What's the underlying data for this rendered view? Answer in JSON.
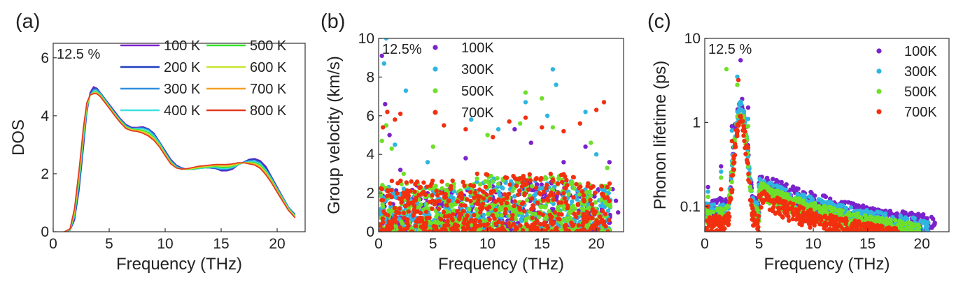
{
  "chart_data": [
    {
      "panel": "(a)",
      "type": "line",
      "xlabel": "Frequency (THz)",
      "ylabel": "DOS",
      "xlim": [
        0,
        22.5
      ],
      "ylim": [
        0,
        6.5
      ],
      "xticks": [
        "0",
        "5",
        "10",
        "15",
        "20"
      ],
      "yticks": [
        "0",
        "2",
        "4",
        "6"
      ],
      "annotation": "12.5 %",
      "series": [
        {
          "name": "100 K",
          "color": "#7a22cc",
          "x": [
            1.0,
            1.5,
            1.9,
            2.3,
            2.7,
            3.0,
            3.3,
            3.6,
            3.9,
            4.2,
            4.6,
            5.0,
            5.5,
            6.0,
            6.5,
            7.0,
            7.5,
            8.0,
            8.5,
            9.0,
            9.5,
            10.0,
            10.5,
            11.0,
            11.5,
            12.0,
            12.5,
            13.0,
            13.5,
            14.0,
            14.5,
            15.0,
            15.5,
            16.0,
            16.5,
            17.0,
            17.5,
            18.0,
            18.5,
            19.0,
            19.5,
            20.0,
            20.5,
            21.0,
            21.6
          ],
          "y": [
            0.0,
            0.05,
            0.4,
            1.5,
            3.0,
            4.2,
            4.8,
            5.0,
            4.95,
            4.8,
            4.6,
            4.4,
            4.15,
            3.9,
            3.7,
            3.6,
            3.6,
            3.62,
            3.55,
            3.4,
            3.1,
            2.8,
            2.5,
            2.3,
            2.2,
            2.15,
            2.15,
            2.2,
            2.2,
            2.2,
            2.18,
            2.1,
            2.1,
            2.15,
            2.3,
            2.4,
            2.5,
            2.52,
            2.45,
            2.25,
            1.9,
            1.55,
            1.2,
            0.85,
            0.6
          ]
        },
        {
          "name": "200 K",
          "color": "#1f3fbf",
          "x": [
            1.0,
            1.5,
            1.9,
            2.3,
            2.7,
            3.0,
            3.3,
            3.6,
            3.9,
            4.2,
            4.6,
            5.0,
            5.5,
            6.0,
            6.5,
            7.0,
            7.5,
            8.0,
            8.5,
            9.0,
            9.5,
            10.0,
            10.5,
            11.0,
            11.5,
            12.0,
            12.5,
            13.0,
            13.5,
            14.0,
            14.5,
            15.0,
            15.5,
            16.0,
            16.5,
            17.0,
            17.5,
            18.0,
            18.5,
            19.0,
            19.5,
            20.0,
            20.5,
            21.0,
            21.6
          ],
          "y": [
            0.0,
            0.05,
            0.4,
            1.4,
            2.9,
            4.1,
            4.75,
            4.95,
            4.95,
            4.8,
            4.6,
            4.38,
            4.12,
            3.88,
            3.68,
            3.58,
            3.58,
            3.6,
            3.55,
            3.38,
            3.1,
            2.78,
            2.48,
            2.28,
            2.2,
            2.15,
            2.15,
            2.18,
            2.2,
            2.2,
            2.18,
            2.12,
            2.12,
            2.18,
            2.3,
            2.4,
            2.48,
            2.5,
            2.42,
            2.2,
            1.88,
            1.52,
            1.2,
            0.85,
            0.6
          ]
        },
        {
          "name": "300 K",
          "color": "#2f8fe0",
          "x": [
            1.0,
            1.5,
            1.9,
            2.3,
            2.7,
            3.0,
            3.3,
            3.6,
            3.9,
            4.2,
            4.6,
            5.0,
            5.5,
            6.0,
            6.5,
            7.0,
            7.5,
            8.0,
            8.5,
            9.0,
            9.5,
            10.0,
            10.5,
            11.0,
            11.5,
            12.0,
            12.5,
            13.0,
            13.5,
            14.0,
            14.5,
            15.0,
            15.5,
            16.0,
            16.5,
            17.0,
            17.5,
            18.0,
            18.5,
            19.0,
            19.5,
            20.0,
            20.5,
            21.0,
            21.6
          ],
          "y": [
            0.0,
            0.05,
            0.5,
            1.6,
            3.1,
            4.2,
            4.72,
            4.9,
            4.9,
            4.78,
            4.58,
            4.36,
            4.1,
            3.86,
            3.66,
            3.56,
            3.58,
            3.58,
            3.52,
            3.35,
            3.08,
            2.75,
            2.45,
            2.26,
            2.18,
            2.14,
            2.16,
            2.18,
            2.2,
            2.2,
            2.2,
            2.15,
            2.15,
            2.2,
            2.3,
            2.4,
            2.45,
            2.45,
            2.38,
            2.15,
            1.85,
            1.5,
            1.18,
            0.84,
            0.58
          ]
        },
        {
          "name": "400 K",
          "color": "#3fdfe0",
          "x": [
            1.0,
            1.5,
            1.9,
            2.3,
            2.7,
            3.0,
            3.3,
            3.6,
            3.9,
            4.2,
            4.6,
            5.0,
            5.5,
            6.0,
            6.5,
            7.0,
            7.5,
            8.0,
            8.5,
            9.0,
            9.5,
            10.0,
            10.5,
            11.0,
            11.5,
            12.0,
            12.5,
            13.0,
            13.5,
            14.0,
            14.5,
            15.0,
            15.5,
            16.0,
            16.5,
            17.0,
            17.5,
            18.0,
            18.5,
            19.0,
            19.5,
            20.0,
            20.5,
            21.0,
            21.6
          ],
          "y": [
            0.0,
            0.06,
            0.55,
            1.7,
            3.2,
            4.25,
            4.7,
            4.85,
            4.85,
            4.75,
            4.55,
            4.34,
            4.08,
            3.84,
            3.64,
            3.55,
            3.55,
            3.55,
            3.48,
            3.3,
            3.05,
            2.72,
            2.42,
            2.24,
            2.16,
            2.14,
            2.16,
            2.18,
            2.2,
            2.22,
            2.22,
            2.18,
            2.18,
            2.22,
            2.3,
            2.38,
            2.42,
            2.42,
            2.34,
            2.12,
            1.82,
            1.48,
            1.15,
            0.82,
            0.56
          ]
        },
        {
          "name": "500 K",
          "color": "#35e02a",
          "x": [
            1.0,
            1.5,
            1.9,
            2.3,
            2.7,
            3.0,
            3.3,
            3.6,
            3.9,
            4.2,
            4.6,
            5.0,
            5.5,
            6.0,
            6.5,
            7.0,
            7.5,
            8.0,
            8.5,
            9.0,
            9.5,
            10.0,
            10.5,
            11.0,
            11.5,
            12.0,
            12.5,
            13.0,
            13.5,
            14.0,
            14.5,
            15.0,
            15.5,
            16.0,
            16.5,
            17.0,
            17.5,
            18.0,
            18.5,
            19.0,
            19.5,
            20.0,
            20.5,
            21.0,
            21.6
          ],
          "y": [
            0.0,
            0.07,
            0.6,
            1.8,
            3.3,
            4.3,
            4.7,
            4.82,
            4.82,
            4.72,
            4.52,
            4.32,
            4.06,
            3.82,
            3.62,
            3.54,
            3.52,
            3.5,
            3.42,
            3.25,
            3.0,
            2.7,
            2.4,
            2.22,
            2.15,
            2.15,
            2.17,
            2.2,
            2.22,
            2.24,
            2.25,
            2.22,
            2.22,
            2.25,
            2.32,
            2.38,
            2.4,
            2.38,
            2.3,
            2.08,
            1.78,
            1.45,
            1.12,
            0.8,
            0.54
          ]
        },
        {
          "name": "600 K",
          "color": "#c8e632",
          "x": [
            1.0,
            1.5,
            1.9,
            2.3,
            2.7,
            3.0,
            3.3,
            3.6,
            3.9,
            4.2,
            4.6,
            5.0,
            5.5,
            6.0,
            6.5,
            7.0,
            7.5,
            8.0,
            8.5,
            9.0,
            9.5,
            10.0,
            10.5,
            11.0,
            11.5,
            12.0,
            12.5,
            13.0,
            13.5,
            14.0,
            14.5,
            15.0,
            15.5,
            16.0,
            16.5,
            17.0,
            17.5,
            18.0,
            18.5,
            19.0,
            19.5,
            20.0,
            20.5,
            21.0,
            21.6
          ],
          "y": [
            0.0,
            0.08,
            0.65,
            1.9,
            3.4,
            4.35,
            4.7,
            4.8,
            4.8,
            4.7,
            4.5,
            4.3,
            4.04,
            3.8,
            3.6,
            3.52,
            3.5,
            3.46,
            3.38,
            3.22,
            2.97,
            2.68,
            2.38,
            2.21,
            2.15,
            2.16,
            2.18,
            2.22,
            2.24,
            2.26,
            2.28,
            2.26,
            2.26,
            2.28,
            2.34,
            2.38,
            2.38,
            2.35,
            2.26,
            2.04,
            1.75,
            1.42,
            1.1,
            0.78,
            0.52
          ]
        },
        {
          "name": "700 K",
          "color": "#f5a023",
          "x": [
            1.0,
            1.5,
            1.9,
            2.3,
            2.7,
            3.0,
            3.3,
            3.6,
            3.9,
            4.2,
            4.6,
            5.0,
            5.5,
            6.0,
            6.5,
            7.0,
            7.5,
            8.0,
            8.5,
            9.0,
            9.5,
            10.0,
            10.5,
            11.0,
            11.5,
            12.0,
            12.5,
            13.0,
            13.5,
            14.0,
            14.5,
            15.0,
            15.5,
            16.0,
            16.5,
            17.0,
            17.5,
            18.0,
            18.5,
            19.0,
            19.5,
            20.0,
            20.5,
            21.0,
            21.6
          ],
          "y": [
            0.0,
            0.09,
            0.7,
            2.0,
            3.5,
            4.4,
            4.72,
            4.78,
            4.78,
            4.68,
            4.48,
            4.28,
            4.02,
            3.78,
            3.58,
            3.5,
            3.48,
            3.42,
            3.34,
            3.18,
            2.94,
            2.65,
            2.36,
            2.2,
            2.15,
            2.17,
            2.2,
            2.24,
            2.26,
            2.28,
            2.3,
            2.3,
            2.3,
            2.32,
            2.36,
            2.38,
            2.36,
            2.32,
            2.22,
            2.0,
            1.72,
            1.4,
            1.08,
            0.76,
            0.5
          ]
        },
        {
          "name": "800 K",
          "color": "#e13a1e",
          "x": [
            1.0,
            1.5,
            1.9,
            2.3,
            2.7,
            3.0,
            3.3,
            3.6,
            3.9,
            4.2,
            4.6,
            5.0,
            5.5,
            6.0,
            6.5,
            7.0,
            7.5,
            8.0,
            8.5,
            9.0,
            9.5,
            10.0,
            10.5,
            11.0,
            11.5,
            12.0,
            12.5,
            13.0,
            13.5,
            14.0,
            14.5,
            15.0,
            15.5,
            16.0,
            16.5,
            17.0,
            17.5,
            18.0,
            18.5,
            19.0,
            19.5,
            20.0,
            20.5,
            21.0,
            21.6
          ],
          "y": [
            0.0,
            0.1,
            0.8,
            2.1,
            3.6,
            4.45,
            4.72,
            4.76,
            4.76,
            4.66,
            4.46,
            4.26,
            4.0,
            3.76,
            3.56,
            3.48,
            3.46,
            3.4,
            3.3,
            3.15,
            2.92,
            2.62,
            2.34,
            2.2,
            2.16,
            2.18,
            2.22,
            2.26,
            2.28,
            2.3,
            2.32,
            2.32,
            2.32,
            2.34,
            2.38,
            2.38,
            2.34,
            2.3,
            2.18,
            1.96,
            1.68,
            1.36,
            1.05,
            0.74,
            0.48
          ]
        }
      ]
    },
    {
      "panel": "(b)",
      "type": "scatter",
      "xlabel": "Frequency (THz)",
      "ylabel": "Group velocity (km/s)",
      "xlim": [
        0,
        22.5
      ],
      "ylim": [
        0,
        10
      ],
      "xticks": [
        "0",
        "5",
        "10",
        "15",
        "20"
      ],
      "yticks": [
        "0",
        "2",
        "4",
        "6",
        "8",
        "10"
      ],
      "annotation": "12.5%",
      "series": [
        {
          "name": "100K",
          "color": "#7a22cc",
          "x": [
            0.3,
            0.6,
            1.0,
            2.0,
            3.5,
            8.0,
            12.5,
            14.0,
            17.0,
            19.0,
            21.5,
            21.8,
            22.0,
            21.2
          ],
          "y": [
            9.1,
            6.6,
            5.0,
            3.2,
            2.4,
            3.8,
            5.3,
            4.6,
            3.6,
            4.4,
            2.2,
            1.6,
            1.0,
            3.6
          ]
        },
        {
          "name": "300K",
          "color": "#2fb5e0",
          "x": [
            0.5,
            0.7,
            1.5,
            2.5,
            4.5,
            8.5,
            11.0,
            13.5,
            15.5,
            16.0,
            16.3,
            19.0,
            20.0
          ],
          "y": [
            8.7,
            10.0,
            4.5,
            7.3,
            3.6,
            5.8,
            5.3,
            6.7,
            6.0,
            8.4,
            7.6,
            6.2,
            4.0
          ]
        },
        {
          "name": "500K",
          "color": "#6fe02a",
          "x": [
            0.3,
            0.7,
            1.2,
            2.3,
            5.0,
            10.0,
            13.0,
            13.5,
            15.0,
            16.0,
            19.5,
            21.0
          ],
          "y": [
            4.7,
            5.5,
            4.3,
            3.0,
            4.4,
            5.0,
            5.6,
            7.2,
            6.9,
            5.4,
            4.6,
            3.3
          ]
        },
        {
          "name": "700K",
          "color": "#f2300f",
          "x": [
            0.4,
            0.8,
            1.5,
            2.0,
            3.0,
            6.0,
            8.0,
            10.5,
            12.0,
            13.5,
            15.0,
            17.0,
            18.5,
            20.0,
            20.7
          ],
          "y": [
            5.4,
            6.2,
            5.8,
            6.1,
            2.6,
            5.5,
            5.3,
            4.9,
            5.7,
            5.9,
            5.4,
            5.2,
            5.6,
            6.3,
            6.7
          ]
        }
      ]
    },
    {
      "panel": "(c)",
      "type": "scatter",
      "xlabel": "Frequency (THz)",
      "ylabel": "Phonon lifetime (ps)",
      "yscale": "log",
      "xlim": [
        0,
        22.5
      ],
      "ylim": [
        0.05,
        10
      ],
      "xticks": [
        "0",
        "5",
        "10",
        "15",
        "20"
      ],
      "yticks": [
        "0.1",
        "1",
        "10"
      ],
      "annotation": "12.5 %",
      "series": [
        {
          "name": "100K",
          "color": "#7a22cc",
          "x": [
            0.3,
            1.5,
            2.5,
            3.3,
            4.0,
            5.0,
            7.0,
            10.0,
            13.0,
            16.0,
            19.0,
            21.0
          ],
          "y": [
            0.17,
            0.3,
            0.9,
            5.5,
            1.5,
            0.19,
            0.15,
            0.12,
            0.095,
            0.08,
            0.065,
            0.058
          ]
        },
        {
          "name": "300K",
          "color": "#2fb5e0",
          "x": [
            0.3,
            1.5,
            2.5,
            3.0,
            4.0,
            5.0,
            7.0,
            10.0,
            13.0,
            16.0,
            19.0,
            20.5
          ],
          "y": [
            0.15,
            0.26,
            0.8,
            3.5,
            1.1,
            0.17,
            0.13,
            0.1,
            0.08,
            0.068,
            0.058,
            0.052
          ]
        },
        {
          "name": "500K",
          "color": "#6fe02a",
          "x": [
            0.3,
            1.5,
            2.0,
            3.0,
            4.0,
            5.0,
            7.0,
            10.0,
            13.0,
            16.0,
            18.5,
            19.5
          ],
          "y": [
            0.13,
            0.22,
            4.3,
            2.8,
            0.9,
            0.15,
            0.11,
            0.085,
            0.07,
            0.06,
            0.054,
            0.052
          ]
        },
        {
          "name": "700K",
          "color": "#f2300f",
          "x": [
            0.3,
            1.5,
            2.5,
            3.1,
            4.0,
            5.0,
            7.0,
            10.0,
            13.0,
            15.5,
            17.5
          ],
          "y": [
            0.1,
            0.16,
            0.6,
            3.2,
            0.5,
            0.13,
            0.095,
            0.075,
            0.062,
            0.056,
            0.052
          ]
        }
      ]
    }
  ]
}
